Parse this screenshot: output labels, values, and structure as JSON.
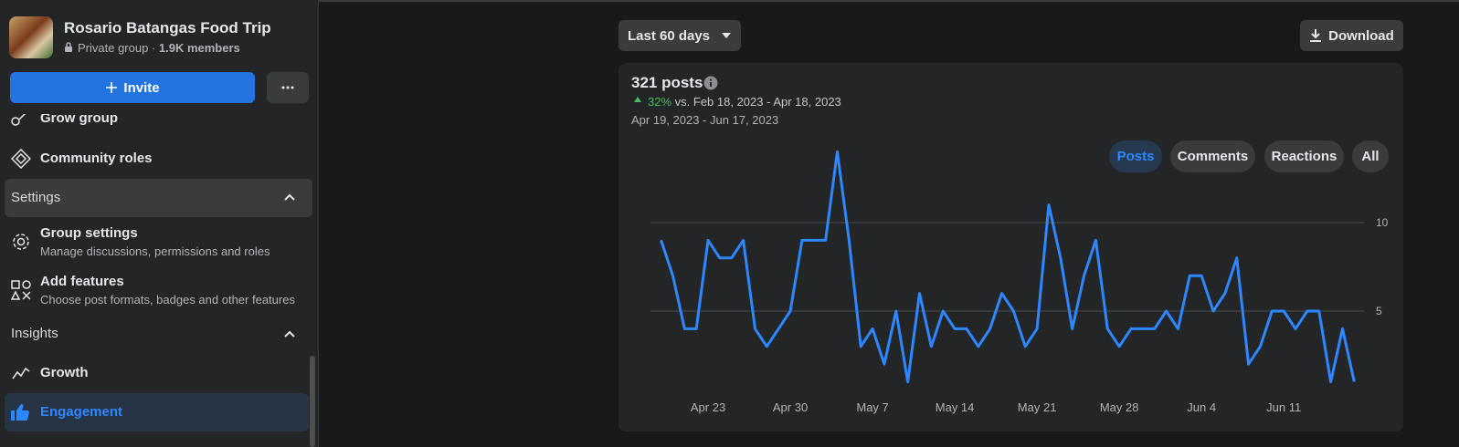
{
  "sidebar": {
    "group_name": "Rosario Batangas Food Trip",
    "privacy": "Private group ·",
    "members": "1.9K members",
    "invite": "Invite",
    "items": [
      {
        "label": "Grow group"
      },
      {
        "label": "Community roles"
      },
      {
        "section": "Settings"
      },
      {
        "label": "Group settings",
        "description": "Manage discussions, permissions and roles"
      },
      {
        "label": "Add features",
        "description": "Choose post formats, badges and other features"
      },
      {
        "section": "Insights"
      },
      {
        "label": "Growth"
      },
      {
        "label": "Engagement"
      }
    ]
  },
  "toolbar": {
    "range": "Last 60 days",
    "download": "Download",
    "tabs": [
      "Posts",
      "Comments",
      "Reactions",
      "All"
    ]
  },
  "chart_data": {
    "type": "line",
    "title": "321 posts",
    "change": "32%",
    "comparison": "vs. Feb 18, 2023 - Apr 18, 2023",
    "subtitle": "Apr 19, 2023 - Jun 17, 2023",
    "categories": [
      null,
      null,
      null,
      null,
      "Apr 23",
      null,
      null,
      null,
      null,
      null,
      null,
      "Apr 30",
      null,
      null,
      null,
      null,
      null,
      null,
      "May 7",
      null,
      null,
      null,
      null,
      null,
      null,
      "May 14",
      null,
      null,
      null,
      null,
      null,
      null,
      "May 21",
      null,
      null,
      null,
      null,
      null,
      null,
      "May 28",
      null,
      null,
      null,
      null,
      null,
      null,
      "Jun 4",
      null,
      null,
      null,
      null,
      null,
      null,
      "Jun 11",
      null,
      null,
      null,
      null,
      null,
      null
    ],
    "values": [
      9,
      7,
      4,
      4,
      9,
      8,
      8,
      9,
      4,
      3,
      4,
      5,
      9,
      9,
      9,
      14,
      9,
      3,
      4,
      2,
      5,
      1,
      6,
      3,
      5,
      4,
      4,
      3,
      4,
      6,
      5,
      3,
      4,
      11,
      8,
      4,
      7,
      9,
      4,
      3,
      4,
      4,
      4,
      5,
      4,
      7,
      7,
      5,
      6,
      8,
      2,
      3,
      5,
      5,
      4,
      5,
      5,
      1,
      4,
      1
    ],
    "color": "#2d88ff",
    "ylim": [
      0,
      15
    ],
    "yticks": [
      5,
      10
    ],
    "grid": true
  }
}
